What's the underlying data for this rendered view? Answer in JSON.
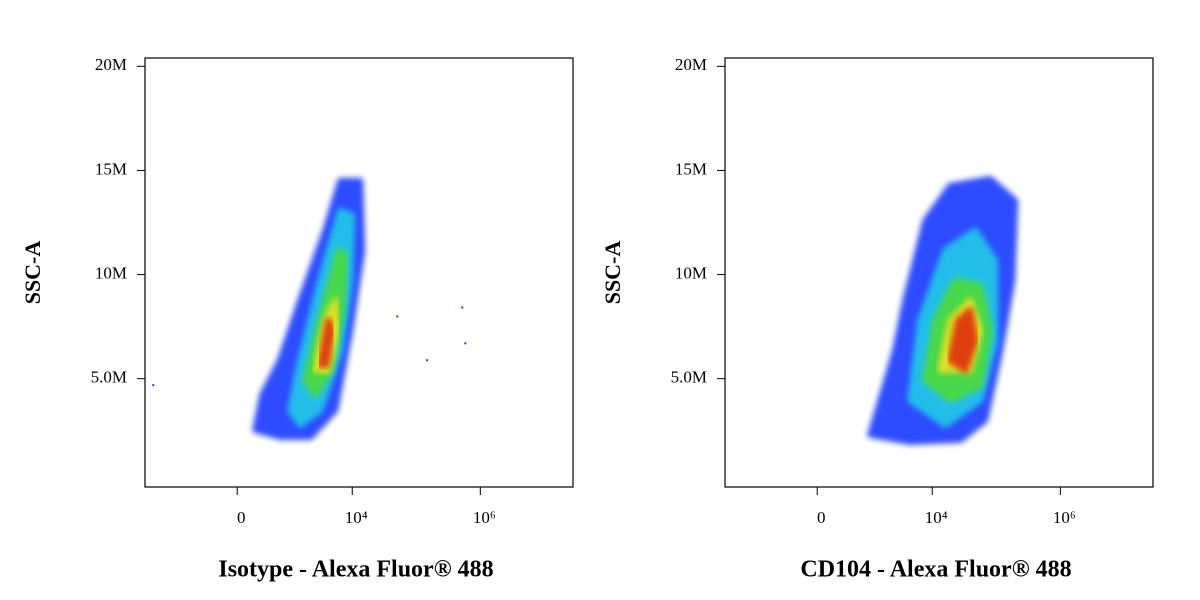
{
  "chart_data": [
    {
      "type": "density",
      "x_label": "Isotype - Alexa Fluor® 488",
      "y_label": "SSC-A",
      "xlim": [
        -4400,
        28000000
      ],
      "ylim": [
        -200000,
        20400000
      ],
      "xticks": [
        0,
        {
          "value": 10000,
          "label": "10⁴"
        },
        {
          "value": 1000000,
          "label": "10⁶"
        }
      ],
      "yticks": [
        {
          "value": 5000000,
          "label": "5.0M"
        },
        {
          "value": 10000000,
          "label": "10M"
        },
        {
          "value": 15000000,
          "label": "15M"
        },
        {
          "value": 20000000,
          "label": "20M"
        }
      ],
      "series": [
        {
          "color": "#1f3cff",
          "x": [
            222,
            328,
            714,
            1527,
            3786,
            6500,
            13350,
            14340,
            9310,
            5430,
            2198,
            714
          ],
          "y": [
            2540000,
            4210000,
            5890000,
            8760000,
            12110000,
            14500000,
            14500000,
            11150000,
            7320000,
            3490000,
            2200000,
            2200000
          ]
        },
        {
          "color": "#22c8e8",
          "x": [
            1053,
            1527,
            3162,
            6500,
            10000,
            9310,
            6500,
            3162,
            1527
          ],
          "y": [
            3490000,
            5890000,
            9710000,
            13060000,
            12820000,
            9710000,
            6360000,
            3490000,
            2780000
          ]
        },
        {
          "color": "#4ddb3c",
          "x": [
            1834,
            3162,
            6050,
            7780,
            6980,
            4534,
            2625
          ],
          "y": [
            4930000,
            7800000,
            11150000,
            10910000,
            8280000,
            5410000,
            4210000
          ]
        },
        {
          "color": "#e8e020",
          "x": [
            2625,
            3786,
            5430,
            5830,
            4220
          ],
          "y": [
            5410000,
            7800000,
            8760000,
            7320000,
            5410000
          ]
        },
        {
          "color": "#e03010",
          "x": [
            3162,
            4220,
            4870,
            3930
          ],
          "y": [
            5650000,
            7800000,
            7320000,
            5650000
          ]
        }
      ],
      "points": {
        "color": "#1f3cff",
        "x": [
          -3270,
          50500,
          522000,
          582000,
          148000
        ],
        "y": [
          4690000,
          7990000,
          8420000,
          6700000,
          5890000
        ]
      }
    },
    {
      "type": "density",
      "x_label": "CD104 - Alexa Fluor® 488",
      "y_label": "SSC-A",
      "xlim": [
        -4400,
        28000000
      ],
      "ylim": [
        -200000,
        20400000
      ],
      "xticks": [
        0,
        {
          "value": 10000,
          "label": "10⁴"
        },
        {
          "value": 1000000,
          "label": "10⁶"
        }
      ],
      "yticks": [
        {
          "value": 5000000,
          "label": "5.0M"
        },
        {
          "value": 10000000,
          "label": "10M"
        },
        {
          "value": 15000000,
          "label": "15M"
        },
        {
          "value": 20000000,
          "label": "20M"
        }
      ],
      "series": [
        {
          "color": "#1f3cff",
          "x": [
            1053,
            2625,
            3786,
            7780,
            19130,
            80300,
            197800,
            178000,
            115500,
            67200,
            27400,
            4534
          ],
          "y": [
            2300000,
            6360000,
            8760000,
            12580000,
            14260000,
            14590000,
            13540000,
            9710000,
            6360000,
            3010000,
            2060000,
            1960000
          ]
        },
        {
          "color": "#22c8e8",
          "x": [
            4534,
            6500,
            16000,
            46900,
            96600,
            96600,
            56200,
            16000
          ],
          "y": [
            3970000,
            7800000,
            11150000,
            12110000,
            10670000,
            6840000,
            3970000,
            2780000
          ]
        },
        {
          "color": "#4ddb3c",
          "x": [
            7780,
            11160,
            22900,
            56200,
            80300,
            56200,
            19130
          ],
          "y": [
            4930000,
            7800000,
            9710000,
            9470000,
            7320000,
            4690000,
            3970000
          ]
        },
        {
          "color": "#e8e020",
          "x": [
            13350,
            19130,
            39300,
            56200,
            39300
          ],
          "y": [
            5410000,
            7800000,
            8760000,
            7320000,
            5410000
          ]
        },
        {
          "color": "#e03010",
          "x": [
            19130,
            25500,
            39300,
            46900,
            32800
          ],
          "y": [
            5890000,
            7800000,
            8280000,
            6840000,
            5410000
          ]
        }
      ]
    }
  ]
}
